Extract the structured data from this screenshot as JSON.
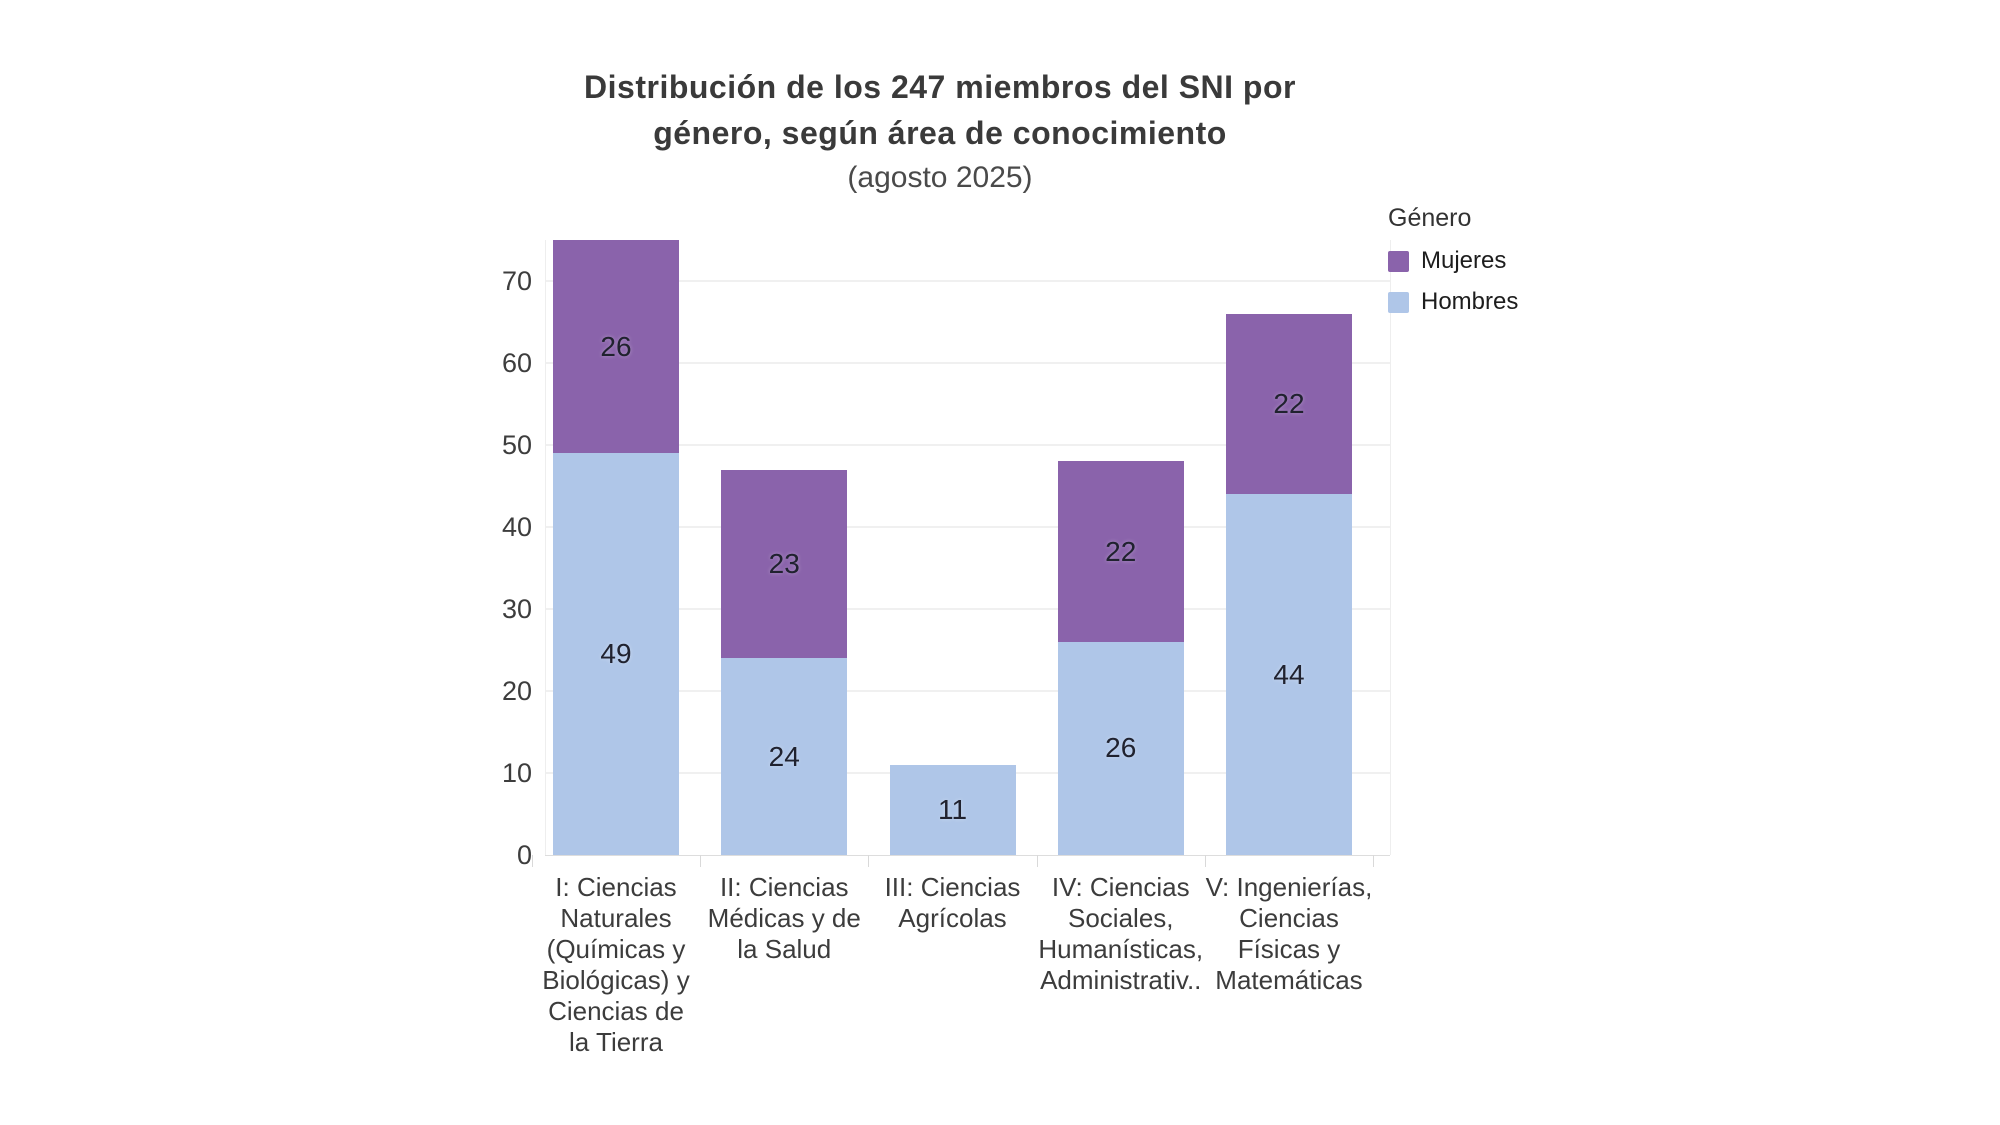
{
  "title": {
    "line1": "Distribución de los 247 miembros del SNI por",
    "line2": "género, según área de conocimiento",
    "subtitle": "(agosto 2025)"
  },
  "legend": {
    "title": "Género",
    "items": [
      {
        "label": "Mujeres",
        "color": "#8a63ab"
      },
      {
        "label": "Hombres",
        "color": "#afc6e8"
      }
    ]
  },
  "colors": {
    "mujeres": "#8a63ab",
    "hombres": "#afc6e8",
    "value_label": "#20222f",
    "grid": "#f0f0f0"
  },
  "chart_data": {
    "type": "bar",
    "stacked": true,
    "title": "Distribución de los 247 miembros del SNI por género, según área de conocimiento",
    "subtitle": "(agosto 2025)",
    "total_members": 247,
    "categories": [
      "I: Ciencias Naturales (Químicas y Biológicas) y Ciencias de la Tierra",
      "II: Ciencias Médicas y de la Salud",
      "III: Ciencias Agrícolas",
      "IV: Ciencias Sociales, Humanísticas, Administrativ..",
      "V: Ingenierías, Ciencias Físicas y Matemáticas"
    ],
    "category_label_lines": [
      [
        "I: Ciencias",
        "Naturales",
        "(Químicas y",
        "Biológicas) y",
        "Ciencias de",
        "la Tierra"
      ],
      [
        "II: Ciencias",
        "Médicas y de",
        "la Salud"
      ],
      [
        "III: Ciencias",
        "Agrícolas"
      ],
      [
        "IV: Ciencias",
        "Sociales,",
        "Humanísticas,",
        "Administrativ.."
      ],
      [
        "V: Ingenierías,",
        "Ciencias",
        "Físicas y",
        "Matemáticas"
      ]
    ],
    "series": [
      {
        "name": "Hombres",
        "color": "#afc6e8",
        "values": [
          49,
          24,
          11,
          26,
          44
        ]
      },
      {
        "name": "Mujeres",
        "color": "#8a63ab",
        "values": [
          26,
          23,
          0,
          22,
          22
        ]
      }
    ],
    "totals": [
      75,
      47,
      11,
      48,
      66
    ],
    "xlabel": "",
    "ylabel": "",
    "ylim": [
      0,
      75
    ],
    "yticks": [
      0,
      10,
      20,
      30,
      40,
      50,
      60,
      70
    ],
    "grid": true,
    "legend_position": "top-right"
  }
}
